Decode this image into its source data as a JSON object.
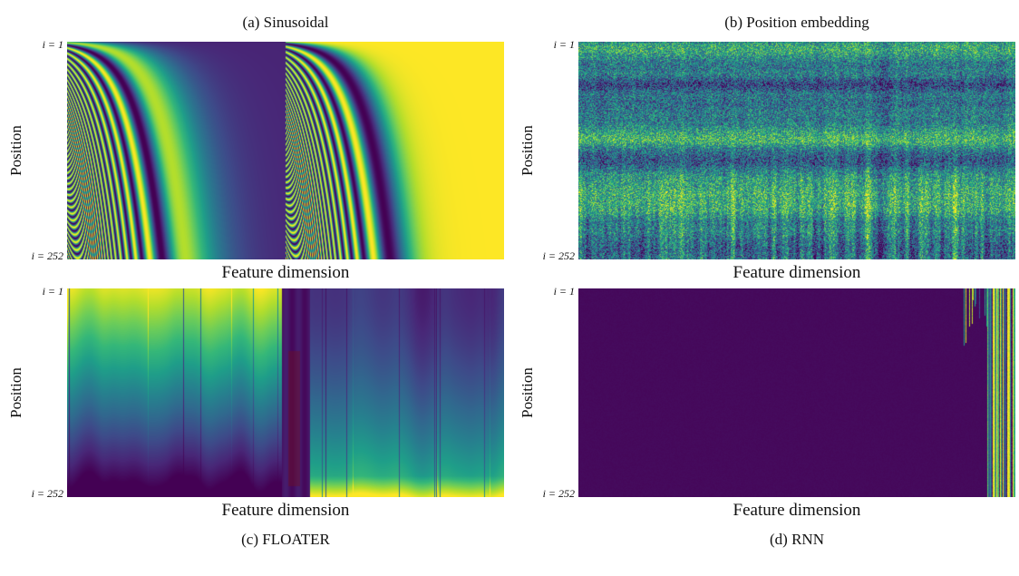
{
  "chart_data": [
    {
      "type": "heatmap",
      "panel": "a",
      "title": "(a) Sinusoidal",
      "xlabel": "Feature dimension",
      "ylabel": "Position",
      "y_ticks": [
        "i = 1",
        "i = 252"
      ],
      "position_range": [
        1,
        252
      ],
      "colormap": "viridis",
      "value_range": [
        -1,
        1
      ],
      "pattern": "sinusoidal",
      "description": "Fixed sinusoidal positional encoding: sin(pos/10000^(k/half)) over the first half of feature dimensions and cos over the second half; wavelength grows left-to-right in each half, producing dense curved bands that funnel to the bottom, a dark low-value band at the end of the sine half, and a bright constant (cos~1) region at the far right."
    },
    {
      "type": "heatmap",
      "panel": "b",
      "title": "(b) Position embedding",
      "xlabel": "Feature dimension",
      "ylabel": "Position",
      "y_ticks": [
        "i = 1",
        "i = 252"
      ],
      "position_range": [
        1,
        252
      ],
      "colormap": "viridis",
      "pattern": "learned",
      "description": "Learned position embedding matrix: high-frequency speckle noise around mid-range values with brighter horizontal bands at several position ranges and vertical streak structure emerging in the lower (large position) rows."
    },
    {
      "type": "heatmap",
      "panel": "c",
      "title": "(c) FLOATER",
      "xlabel": "Feature dimension",
      "ylabel": "Position",
      "y_ticks": [
        "i = 1",
        "i = 252"
      ],
      "position_range": [
        1,
        252
      ],
      "colormap": "viridis",
      "pattern": "floater",
      "description": "FLOATER continuous dynamical-model encoding: smooth fields varying with position; left half bright at top fading to dark at bottom, a dark narrow transition band (with reddish tint) just past mid-width, right half dark at top brightening toward the bottom-right, with sparse thin dark vertical lines across both halves."
    },
    {
      "type": "heatmap",
      "panel": "d",
      "title": "(d) RNN",
      "xlabel": "Feature dimension",
      "ylabel": "Position",
      "y_ticks": [
        "i = 1",
        "i = 252"
      ],
      "position_range": [
        1,
        252
      ],
      "colormap": "viridis",
      "pattern": "rnn",
      "description": "RNN-generated positional encoding: near-constant minimum values across almost all feature dimensions, with high-variance vertical stripes (yellow/green/blue) confined to the right-most few percent of dimensions and a few stripes reaching slightly further left only at small positions."
    }
  ]
}
